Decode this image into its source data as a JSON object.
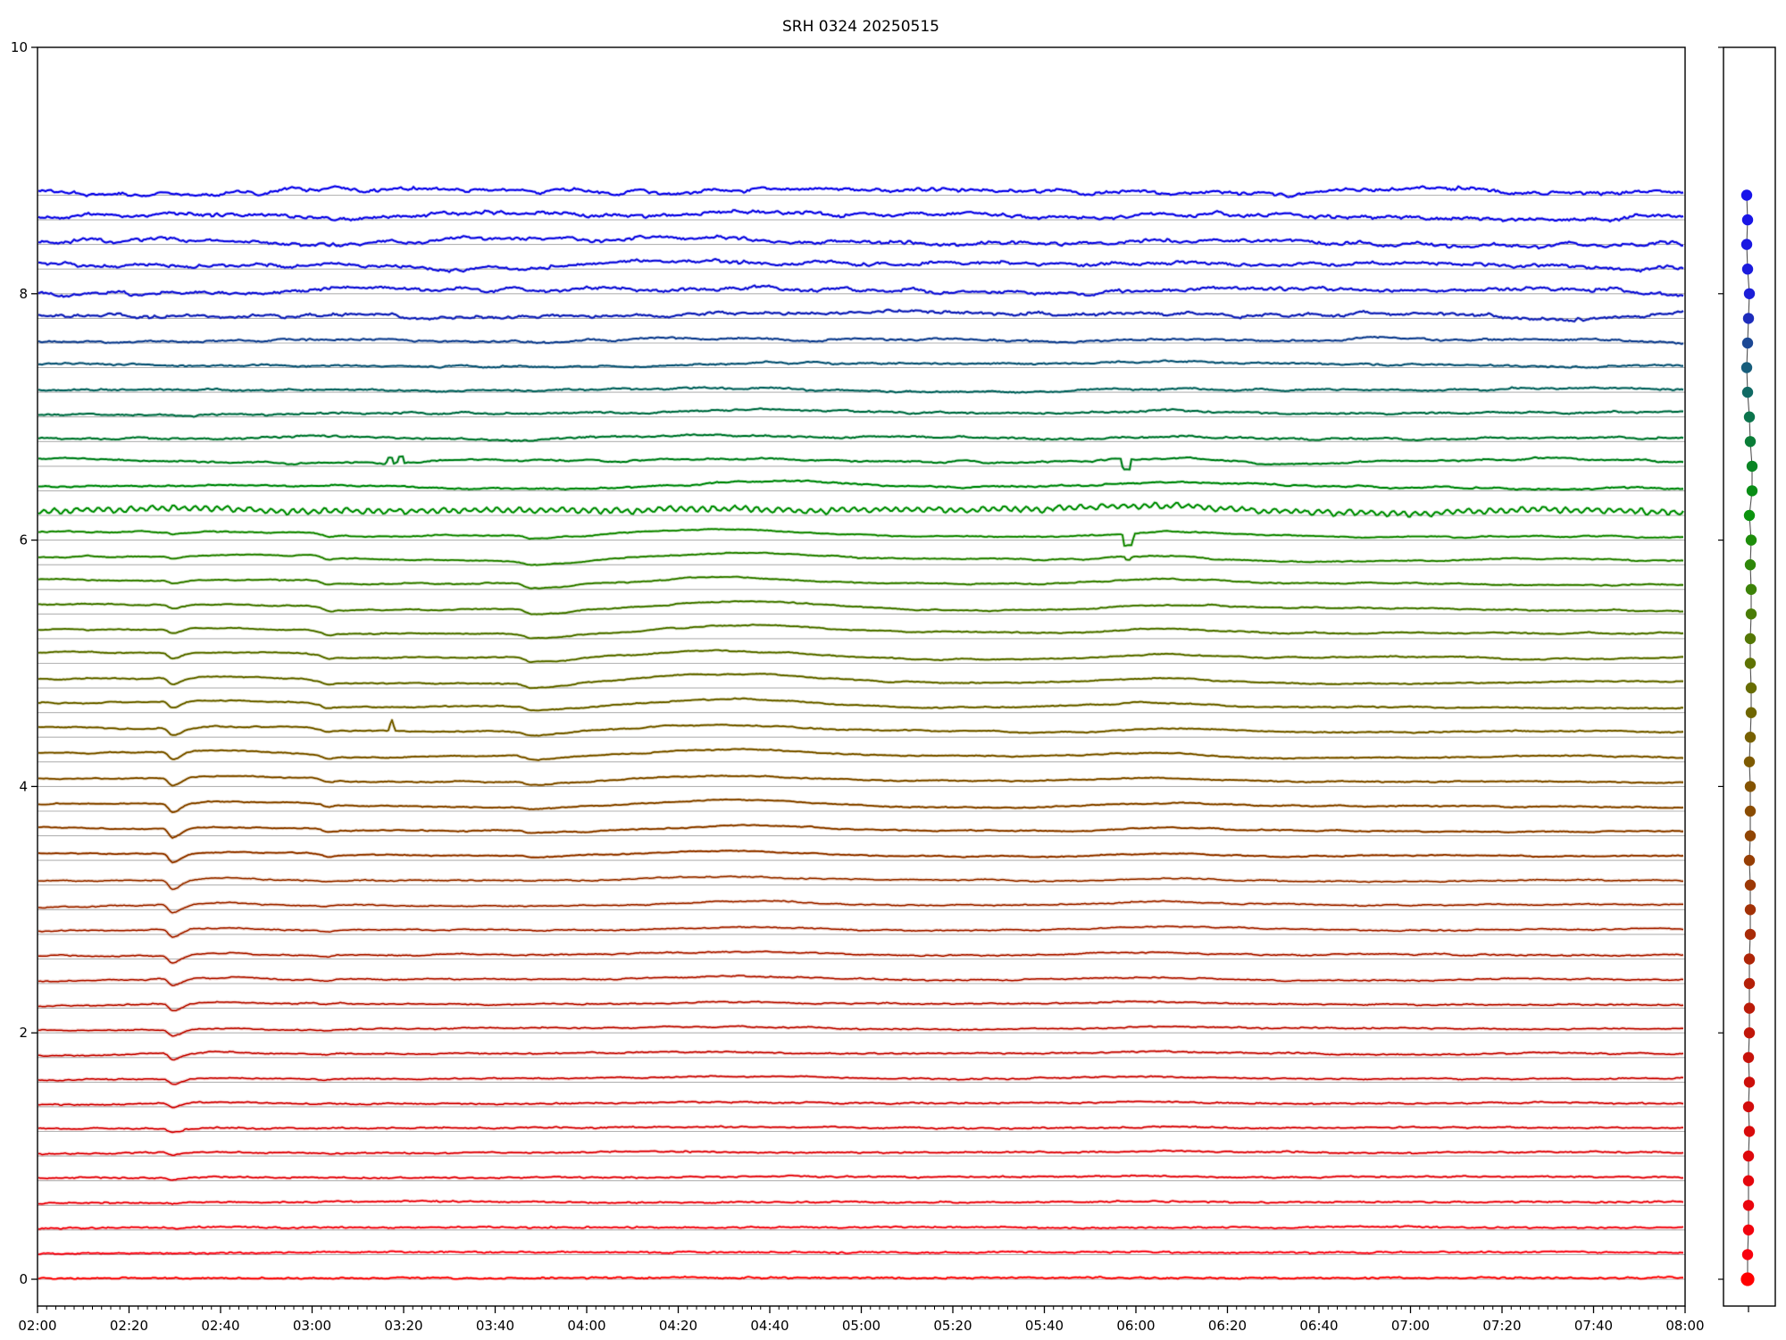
{
  "chart_data": {
    "type": "line",
    "title": "SRH 0324 20250515",
    "xlabel": "",
    "ylabel": "",
    "x_tick_labels": [
      "02:00",
      "02:20",
      "02:40",
      "03:00",
      "03:20",
      "03:40",
      "04:00",
      "04:20",
      "04:40",
      "05:00",
      "05:20",
      "05:40",
      "06:00",
      "06:20",
      "06:40",
      "07:00",
      "07:20",
      "07:40",
      "08:00"
    ],
    "x_minor_tick_minutes": 2,
    "x_range_minutes": [
      0,
      360
    ],
    "y_ticks": [
      0,
      2,
      4,
      6,
      8,
      10
    ],
    "ylim": [
      -0.22,
      10
    ],
    "grid": "per-trace gray baselines",
    "legend_position": "none",
    "n_traces": 45,
    "trace_offset_top": 8.8,
    "trace_offset_step": 0.2,
    "features": {
      "v_dip_all_lower_traces": "02:29",
      "level_drop_mid_traces": "03:02",
      "double_up_spike_trace_6p6": "03:17",
      "tall_spike_trace_4p4": "03:17",
      "asymmetric_dip_mid_traces": "03:48",
      "broad_bump_peak": "04:30",
      "square_dips_traces_6p6_and_6p0": "05:57",
      "secondary_bump_peak": "06:06"
    },
    "trace_fields": [
      "offset",
      "color",
      "elev",
      "hf",
      "mf",
      "wander",
      "plateau",
      "dip0229",
      "dip0348",
      "bump0430",
      "bump0605",
      "sidebar_dx",
      "special"
    ],
    "traces": [
      [
        8.8,
        "#1813ea",
        3.5,
        1.7,
        2.3,
        3.4,
        0,
        0,
        0,
        2,
        2,
        -2,
        ""
      ],
      [
        8.6,
        "#1915e6",
        3.5,
        1.7,
        2.2,
        3.2,
        0,
        0,
        0,
        2,
        2,
        -1,
        ""
      ],
      [
        8.4,
        "#1a18e2",
        3.5,
        1.6,
        2.1,
        3.0,
        0,
        0,
        0,
        2,
        2,
        -2,
        ""
      ],
      [
        8.2,
        "#1b1bdd",
        3.5,
        1.6,
        2.1,
        3.0,
        0,
        0,
        0,
        2,
        2,
        -1,
        ""
      ],
      [
        8.0,
        "#1c1ed7",
        3.5,
        1.6,
        2.0,
        3.2,
        0,
        0,
        0,
        2,
        2,
        1,
        ""
      ],
      [
        7.8,
        "#1d2cbb",
        3.5,
        1.5,
        1.9,
        2.8,
        0,
        0,
        0,
        2,
        2,
        0,
        ""
      ],
      [
        7.6,
        "#1c4894",
        3.0,
        0.9,
        1.2,
        1.8,
        0,
        0,
        0,
        2,
        2,
        -1,
        ""
      ],
      [
        7.4,
        "#175d7b",
        3.0,
        0.8,
        1.0,
        1.6,
        0,
        0,
        0,
        2,
        2,
        -2,
        ""
      ],
      [
        7.2,
        "#106a64",
        3.0,
        0.8,
        1.0,
        1.6,
        0,
        0,
        0,
        2.5,
        2,
        -1,
        ""
      ],
      [
        7.0,
        "#0c744c",
        3.5,
        0.8,
        1.0,
        1.8,
        0,
        0,
        0,
        3,
        3,
        1,
        ""
      ],
      [
        6.8,
        "#0a7d37",
        4.0,
        0.8,
        1.0,
        2.0,
        0,
        0,
        0,
        3,
        3,
        2,
        ""
      ],
      [
        6.6,
        "#098524",
        6.0,
        0.7,
        1.2,
        2.6,
        0,
        0,
        0,
        4,
        5,
        4,
        "dblspike_sqdip"
      ],
      [
        6.4,
        "#088d15",
        5.0,
        0.7,
        1.0,
        2.0,
        0,
        0,
        0,
        4,
        4,
        4,
        ""
      ],
      [
        6.2,
        "#0b930e",
        5.0,
        1.1,
        1.0,
        2.2,
        0,
        0,
        0,
        5,
        5,
        1,
        "zigzag"
      ],
      [
        6.0,
        "#1d8d0a",
        5.0,
        0.5,
        0.8,
        1.5,
        4,
        2,
        4,
        7,
        5,
        3,
        "sqdip13"
      ],
      [
        5.8,
        "#2e8709",
        5.0,
        0.5,
        0.8,
        1.5,
        4.5,
        2.5,
        4.5,
        7,
        5,
        2,
        "sqdip3"
      ],
      [
        5.6,
        "#3c8207",
        5.5,
        0.5,
        0.7,
        1.4,
        5,
        3,
        5,
        8,
        5,
        3,
        ""
      ],
      [
        5.4,
        "#497c06",
        5.5,
        0.5,
        0.7,
        1.4,
        5,
        4,
        5,
        8,
        5,
        3,
        ""
      ],
      [
        5.2,
        "#547705",
        6.0,
        0.5,
        0.7,
        1.3,
        5,
        5,
        5.5,
        9,
        5,
        2,
        ""
      ],
      [
        5.0,
        "#5e7203",
        6.0,
        0.5,
        0.7,
        1.3,
        5,
        6,
        5.5,
        9,
        5,
        2,
        ""
      ],
      [
        4.8,
        "#676c02",
        6.0,
        0.5,
        0.6,
        1.2,
        5,
        7,
        5,
        9,
        4.5,
        3,
        ""
      ],
      [
        4.6,
        "#6f6601",
        6.0,
        0.5,
        0.6,
        1.2,
        5,
        7.5,
        5,
        8.5,
        4.5,
        3,
        ""
      ],
      [
        4.4,
        "#776001",
        6.0,
        0.5,
        0.6,
        1.2,
        5,
        8,
        4.5,
        8,
        4,
        2,
        "spike"
      ],
      [
        4.2,
        "#7e5a00",
        5.5,
        0.5,
        0.6,
        1.1,
        4.5,
        8.5,
        4,
        7.5,
        4,
        1,
        ""
      ],
      [
        4.0,
        "#845301",
        5.5,
        0.5,
        0.6,
        1.1,
        4,
        9,
        3.5,
        7,
        4,
        2,
        ""
      ],
      [
        3.8,
        "#8a4c02",
        5.0,
        0.5,
        0.6,
        1.0,
        3.5,
        9.5,
        3,
        6.5,
        3.5,
        2,
        ""
      ],
      [
        3.6,
        "#904503",
        5.0,
        0.5,
        0.6,
        1.0,
        3,
        10,
        2.5,
        6,
        3.5,
        2,
        ""
      ],
      [
        3.4,
        "#963e04",
        5.0,
        0.5,
        0.6,
        1.0,
        2.5,
        10,
        2,
        5.5,
        3.5,
        1,
        ""
      ],
      [
        3.2,
        "#9c3805",
        5.0,
        0.55,
        0.6,
        1.0,
        0,
        10,
        0,
        5,
        3,
        2,
        ""
      ],
      [
        3.0,
        "#a23106",
        5.0,
        0.55,
        0.6,
        1.0,
        0,
        9.5,
        0,
        4.5,
        3,
        2,
        ""
      ],
      [
        2.8,
        "#a82b07",
        5.0,
        0.55,
        0.6,
        1.0,
        0,
        9,
        0,
        4,
        3,
        2,
        ""
      ],
      [
        2.6,
        "#ae2507",
        4.5,
        0.6,
        0.6,
        0.9,
        0,
        8.5,
        0,
        3.5,
        2.5,
        1,
        ""
      ],
      [
        2.4,
        "#b42008",
        4.5,
        0.6,
        0.6,
        0.9,
        0,
        8,
        0,
        3,
        2.5,
        1,
        ""
      ],
      [
        2.2,
        "#ba1b09",
        4.5,
        0.6,
        0.5,
        0.9,
        0,
        8,
        0,
        2.5,
        2,
        1,
        ""
      ],
      [
        2.0,
        "#c01609",
        4.5,
        0.6,
        0.5,
        0.8,
        0,
        7,
        0,
        2,
        2,
        1,
        ""
      ],
      [
        1.8,
        "#c6120a",
        4.0,
        0.65,
        0.5,
        0.8,
        0,
        7,
        0,
        2,
        2,
        0,
        ""
      ],
      [
        1.6,
        "#cc0f0a",
        4.0,
        0.65,
        0.5,
        0.8,
        0,
        6,
        0,
        1.5,
        1.5,
        1,
        ""
      ],
      [
        1.4,
        "#d20c0b",
        4.0,
        0.7,
        0.5,
        0.7,
        0,
        5,
        0,
        1.5,
        1.5,
        0,
        ""
      ],
      [
        1.2,
        "#d80a0b",
        4.0,
        0.7,
        0.5,
        0.7,
        0,
        4,
        0,
        1,
        1.5,
        1,
        ""
      ],
      [
        1.0,
        "#de080c",
        4.0,
        0.7,
        0.4,
        0.7,
        0,
        3,
        0,
        1,
        1,
        0,
        ""
      ],
      [
        0.8,
        "#e4060c",
        4.0,
        0.75,
        0.4,
        0.6,
        0,
        2,
        0,
        0.5,
        1,
        0,
        ""
      ],
      [
        0.6,
        "#ea050d",
        3.5,
        0.75,
        0.4,
        0.6,
        0,
        1.5,
        0,
        0.5,
        1,
        0,
        ""
      ],
      [
        0.4,
        "#f1030d",
        3.0,
        0.8,
        0.4,
        0.5,
        0,
        1,
        0,
        0,
        0,
        0,
        ""
      ],
      [
        0.2,
        "#f8010e",
        2.5,
        0.8,
        0.3,
        0.5,
        0,
        0.5,
        0,
        0,
        0,
        -1,
        ""
      ],
      [
        0.0,
        "#ff0000",
        1.8,
        0.85,
        0.3,
        0.4,
        0,
        0,
        0,
        0,
        0,
        -1,
        ""
      ]
    ]
  },
  "sidebar": {
    "dot_radius": 6.2,
    "bottom_dot_radius": 7.6,
    "connector_color": "#333333",
    "y_ticks": [
      0,
      2,
      4,
      6,
      8,
      10
    ]
  },
  "style": {
    "baseline_color": "#b3b3b3",
    "axis_color": "#000000",
    "background": "#ffffff"
  }
}
